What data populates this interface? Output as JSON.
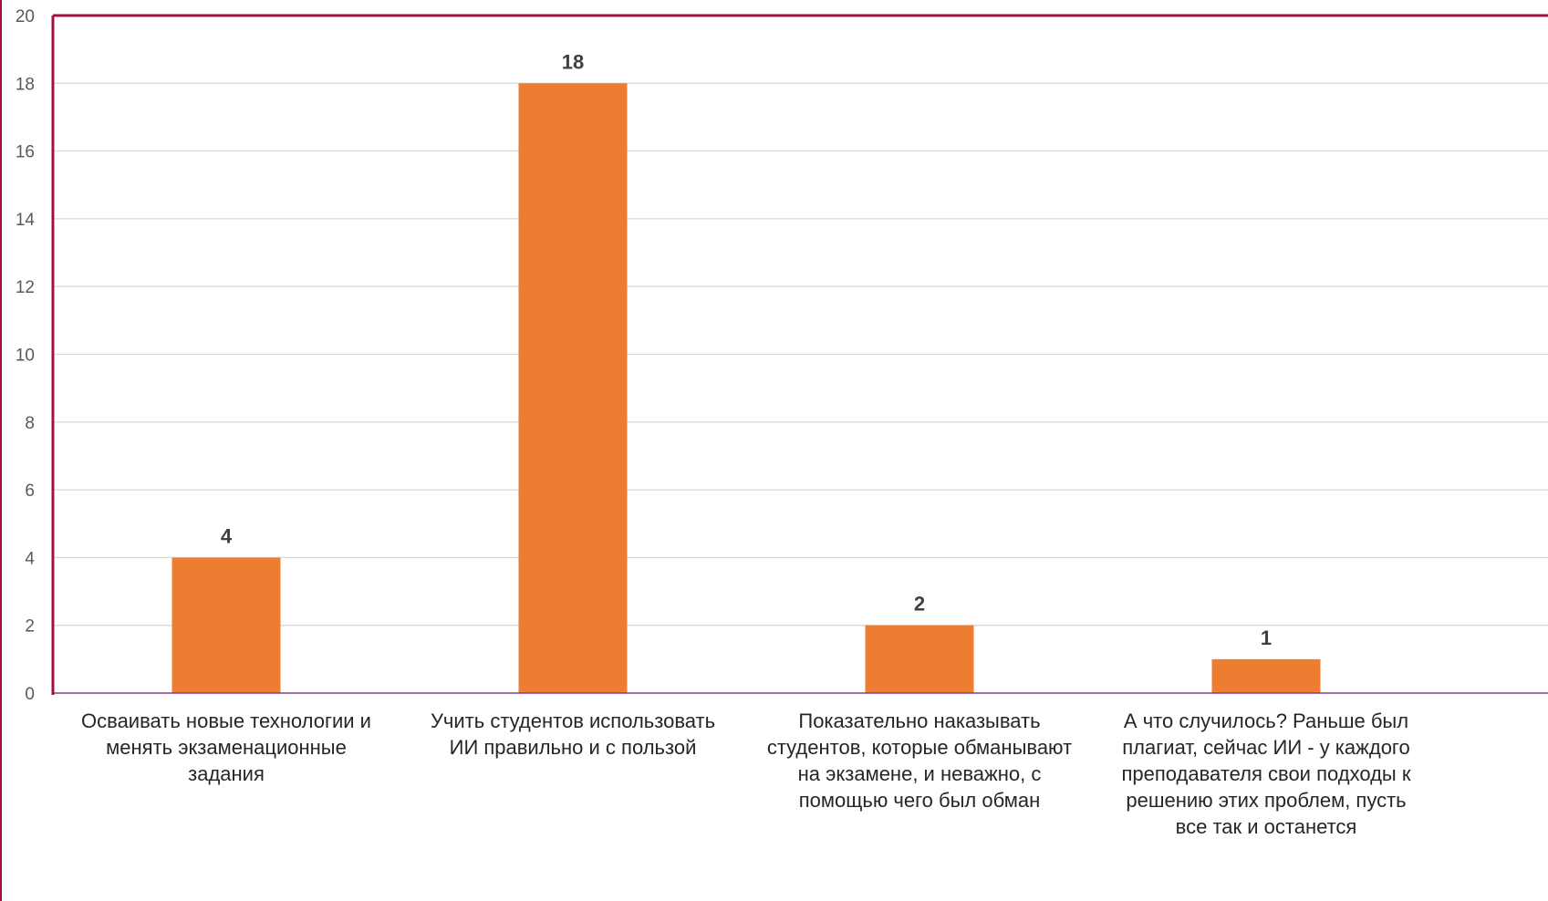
{
  "chart_data": {
    "type": "bar",
    "categories": [
      [
        "Осваивать новые технологии и",
        "менять экзаменационные",
        "задания"
      ],
      [
        "Учить студентов использовать",
        "ИИ правильно и с пользой"
      ],
      [
        "Показательно наказывать",
        "студентов, которые обманывают",
        "на экзамене, и неважно, с",
        "помощью чего был обман"
      ],
      [
        "А что случилось? Раньше был",
        "плагиат, сейчас ИИ - у каждого",
        "преподавателя свои подходы к",
        "решению этих проблем, пусть",
        "все так и останется"
      ]
    ],
    "values": [
      4,
      18,
      2,
      1
    ],
    "ylim": [
      0,
      20
    ],
    "yticks": [
      "0",
      "2",
      "4",
      "6",
      "8",
      "10",
      "12",
      "14",
      "16",
      "18",
      "20"
    ],
    "data_labels": [
      "4",
      "18",
      "2",
      "1"
    ],
    "grid": true,
    "colors": {
      "bar": "#ED7D31",
      "frame": "#A50F3C",
      "grid": "#D9D9D9",
      "baseline": "#7F3F98"
    }
  }
}
